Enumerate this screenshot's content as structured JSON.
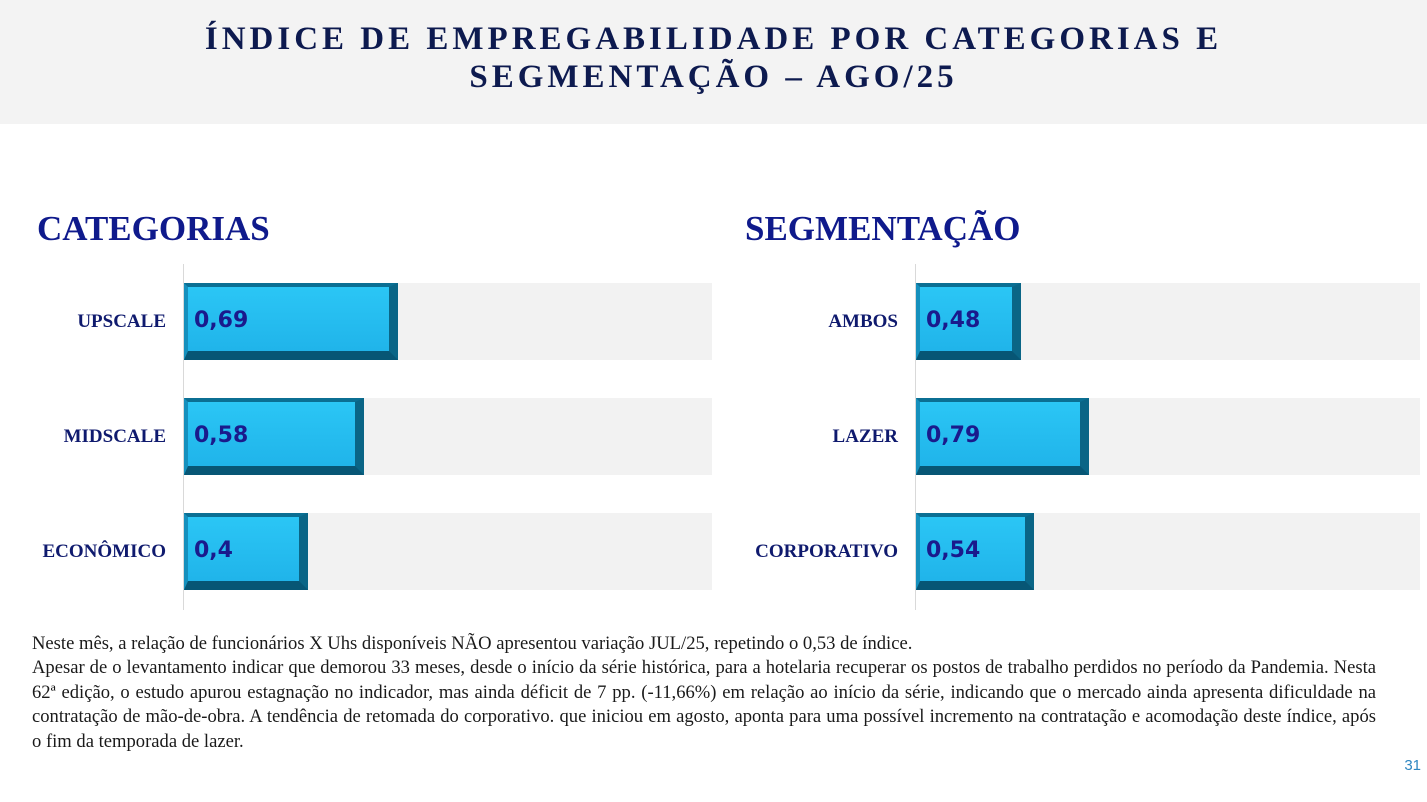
{
  "header": {
    "title_line1": "ÍNDICE DE EMPREGABILIDADE POR CATEGORIAS E",
    "title_line2": "SEGMENTAÇÃO – AGO/25"
  },
  "chart_data": [
    {
      "type": "bar",
      "orientation": "horizontal",
      "title": "CATEGORIAS",
      "categories": [
        "UPSCALE",
        "MIDSCALE",
        "ECONÔMICO"
      ],
      "values": [
        0.69,
        0.58,
        0.4
      ],
      "value_labels": [
        "0,69",
        "0,58",
        "0,4"
      ],
      "xlim": [
        0,
        1.7
      ],
      "grid": false,
      "bar_color": "#22b8ee",
      "track_color": "#f2f2f2",
      "label_color": "#1a1a8c"
    },
    {
      "type": "bar",
      "orientation": "horizontal",
      "title": "SEGMENTAÇÃO",
      "categories": [
        "AMBOS",
        "LAZER",
        "CORPORATIVO"
      ],
      "values": [
        0.48,
        0.79,
        0.54
      ],
      "value_labels": [
        "0,48",
        "0,79",
        "0,54"
      ],
      "xlim": [
        0,
        2.3
      ],
      "grid": false,
      "bar_color": "#22b8ee",
      "track_color": "#f2f2f2",
      "label_color": "#1a1a8c"
    }
  ],
  "body": {
    "paragraph1": "Neste mês, a relação de funcionários X Uhs disponíveis NÃO apresentou variação  JUL/25, repetindo o 0,53 de índice.",
    "paragraph2": "Apesar de o levantamento indicar que demorou 33 meses, desde o início da série histórica, para a hotelaria recuperar os postos de trabalho perdidos no período da Pandemia. Nesta 62ª edição, o estudo apurou estagnação no indicador, mas ainda déficit de 7 pp. (-11,66%) em relação ao início da série, indicando que o mercado ainda apresenta dificuldade na contratação de mão-de-obra. A tendência de retomada do corporativo. que iniciou em agosto, aponta para uma possível incremento na contratação e acomodação deste índice, após o fim da temporada de lazer."
  },
  "page_number": "31"
}
